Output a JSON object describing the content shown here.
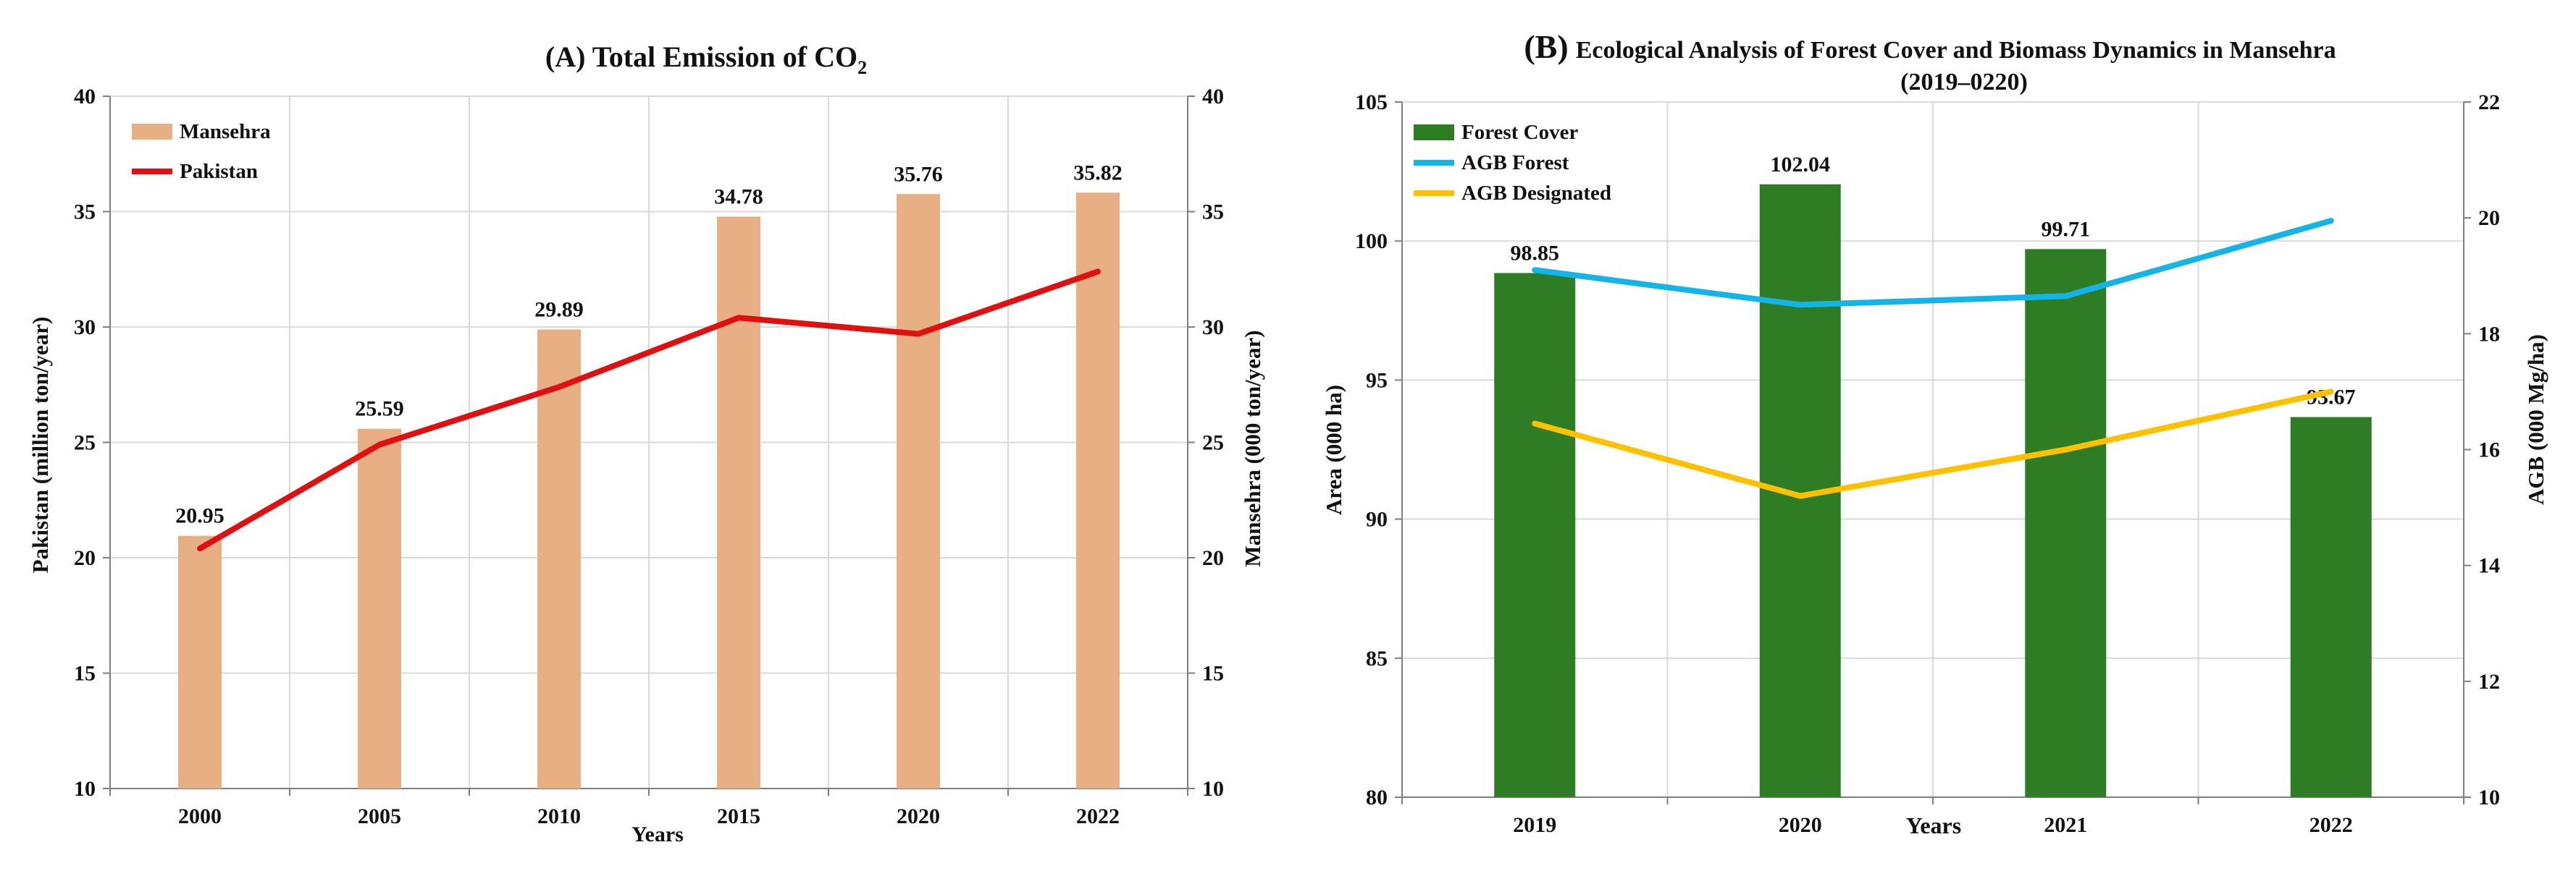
{
  "colors": {
    "mansehra_bar": "#E8AF84",
    "pakistan_line": "#E01010",
    "forest_bar": "#2E7D24",
    "agb_forest": "#12B4EA",
    "agb_designated": "#FFC000"
  },
  "chart_data": [
    {
      "type": "bar",
      "title_main": "(A) Total Emission of CO",
      "title_sub": "2",
      "xlabel": "Years",
      "ylabel_left": "Pakistan (million ton/year)",
      "ylabel_right": "Mansehra (000 ton/year)",
      "ylim_left": [
        10,
        40
      ],
      "ylim_right": [
        10,
        40
      ],
      "yticks_left": [
        "10",
        "15",
        "20",
        "25",
        "30",
        "35",
        "40"
      ],
      "yticks_right": [
        "10",
        "15",
        "20",
        "25",
        "30",
        "35",
        "40"
      ],
      "categories": [
        "2000",
        "2005",
        "2010",
        "2015",
        "2020",
        "2022"
      ],
      "series": [
        {
          "name": "Mansehra",
          "type": "bar",
          "axis": "right",
          "values": [
            20.95,
            25.59,
            29.89,
            34.78,
            35.76,
            35.82
          ],
          "labels": [
            "20.95",
            "25.59",
            "29.89",
            "34.78",
            "35.76",
            "35.82"
          ]
        },
        {
          "name": "Pakistan",
          "type": "line",
          "axis": "left",
          "values": [
            20.4,
            24.9,
            27.4,
            30.4,
            29.7,
            32.4
          ]
        }
      ],
      "legend": [
        "Mansehra",
        "Pakistan"
      ]
    },
    {
      "type": "bar",
      "title_prefix": "(B)",
      "title_line1": "Ecological Analysis of Forest Cover and Biomass Dynamics in Mansehra",
      "title_line2": "(2019–0220)",
      "xlabel": "Years",
      "ylabel_left": "Area (000 ha)",
      "ylabel_right": "AGB (000 Mg/ha)",
      "ylim_left": [
        80,
        105
      ],
      "ylim_right": [
        10,
        22
      ],
      "yticks_left": [
        "80",
        "85",
        "90",
        "95",
        "100",
        "105"
      ],
      "yticks_right": [
        "10",
        "12",
        "14",
        "16",
        "18",
        "20",
        "22"
      ],
      "categories": [
        "2019",
        "2020",
        "2021",
        "2022"
      ],
      "series": [
        {
          "name": "Forest Cover",
          "type": "bar",
          "axis": "left",
          "values": [
            98.85,
            102.04,
            99.71,
            93.67
          ],
          "labels": [
            "98.85",
            "102.04",
            "99.71",
            "93.67"
          ]
        },
        {
          "name": "AGB Forest",
          "type": "line",
          "axis": "right",
          "values": [
            19.1,
            18.5,
            18.65,
            19.95
          ]
        },
        {
          "name": "AGB Designated",
          "type": "line",
          "axis": "right",
          "values": [
            16.45,
            15.2,
            16.0,
            17.0
          ]
        }
      ],
      "legend": [
        "Forest Cover",
        "AGB Forest",
        "AGB Designated"
      ]
    }
  ]
}
